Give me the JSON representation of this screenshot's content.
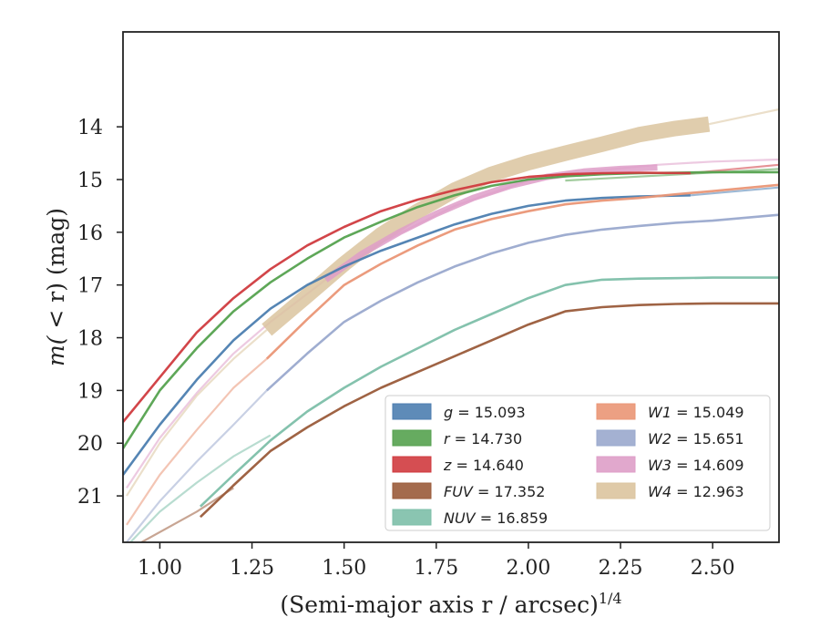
{
  "chart_data": {
    "type": "line",
    "xlabel": "(Semi-major axis r / arcsec)",
    "xlabel_sup": "1/4",
    "ylabel_pre": "m(",
    "ylabel_mid": " < r",
    "ylabel_post": ") (mag)",
    "xlim": [
      0.9,
      2.68
    ],
    "ylim": [
      21.88,
      12.2
    ],
    "y_inverted": true,
    "xticks": [
      1.0,
      1.25,
      1.5,
      1.75,
      2.0,
      2.25,
      2.5
    ],
    "xtick_labels": [
      "1.00",
      "1.25",
      "1.50",
      "1.75",
      "2.00",
      "2.25",
      "2.50"
    ],
    "yticks": [
      14,
      15,
      16,
      17,
      18,
      19,
      20,
      21
    ],
    "ytick_labels": [
      "14",
      "15",
      "16",
      "17",
      "18",
      "19",
      "20",
      "21"
    ],
    "grid": false,
    "legend": {
      "position": "lower-right",
      "columns": 2
    },
    "series": [
      {
        "name": "g",
        "value": "15.093",
        "color": "#4c7eb0",
        "x": [
          0.9,
          1.0,
          1.1,
          1.2,
          1.3,
          1.4,
          1.5,
          1.6,
          1.7,
          1.8,
          1.9,
          2.0,
          2.1,
          2.2,
          2.3,
          2.44
        ],
        "y": [
          20.6,
          19.65,
          18.8,
          18.05,
          17.45,
          17.0,
          16.65,
          16.35,
          16.1,
          15.85,
          15.65,
          15.5,
          15.4,
          15.35,
          15.32,
          15.3
        ],
        "faint_x": [
          2.44,
          2.68
        ],
        "faint_y": [
          15.3,
          15.15
        ]
      },
      {
        "name": "r",
        "value": "14.730",
        "color": "#55a24f",
        "x": [
          0.9,
          1.0,
          1.1,
          1.2,
          1.3,
          1.4,
          1.5,
          1.6,
          1.7,
          1.8,
          1.9,
          2.0,
          2.1,
          2.2,
          2.3,
          2.4,
          2.5,
          2.68
        ],
        "y": [
          20.1,
          19.0,
          18.2,
          17.5,
          16.95,
          16.5,
          16.1,
          15.8,
          15.52,
          15.3,
          15.12,
          15.0,
          14.94,
          14.9,
          14.88,
          14.87,
          14.86,
          14.86
        ],
        "faint_x": [
          2.1,
          2.68
        ],
        "faint_y": [
          15.02,
          14.8
        ]
      },
      {
        "name": "z",
        "value": "14.640",
        "color": "#d03b3f",
        "x": [
          0.9,
          1.0,
          1.1,
          1.2,
          1.3,
          1.4,
          1.5,
          1.6,
          1.7,
          1.8,
          1.9,
          2.0,
          2.1,
          2.2,
          2.3,
          2.44
        ],
        "y": [
          19.6,
          18.75,
          17.9,
          17.25,
          16.7,
          16.25,
          15.9,
          15.6,
          15.38,
          15.2,
          15.05,
          14.95,
          14.9,
          14.88,
          14.87,
          14.88
        ],
        "faint_x": [
          2.44,
          2.68
        ],
        "faint_y": [
          14.88,
          14.72
        ]
      },
      {
        "name": "FUV",
        "value": "17.352",
        "color": "#9a5b3a",
        "x": [
          1.11,
          1.2,
          1.3,
          1.4,
          1.5,
          1.6,
          1.7,
          1.8,
          1.9,
          2.0,
          2.1,
          2.2,
          2.3,
          2.4,
          2.5,
          2.68
        ],
        "y": [
          21.4,
          20.8,
          20.15,
          19.7,
          19.3,
          18.95,
          18.65,
          18.35,
          18.05,
          17.75,
          17.5,
          17.42,
          17.38,
          17.36,
          17.35,
          17.35
        ],
        "faint_x": [
          0.95,
          1.1,
          1.2
        ],
        "faint_y": [
          21.88,
          21.3,
          20.85
        ]
      },
      {
        "name": "NUV",
        "value": "16.859",
        "color": "#7dbfa9",
        "x": [
          1.11,
          1.2,
          1.3,
          1.4,
          1.5,
          1.6,
          1.7,
          1.8,
          1.9,
          2.0,
          2.1,
          2.2,
          2.3,
          2.4,
          2.5,
          2.68
        ],
        "y": [
          21.2,
          20.6,
          19.95,
          19.4,
          18.95,
          18.55,
          18.2,
          17.85,
          17.55,
          17.25,
          17.0,
          16.9,
          16.88,
          16.87,
          16.86,
          16.86
        ],
        "faint_x": [
          0.92,
          1.0,
          1.1,
          1.2,
          1.3
        ],
        "faint_y": [
          21.88,
          21.3,
          20.75,
          20.25,
          19.85
        ]
      },
      {
        "name": "W1",
        "value": "15.049",
        "color": "#ea9676",
        "x": [
          1.29,
          1.4,
          1.5,
          1.6,
          1.7,
          1.8,
          1.9,
          2.0,
          2.1,
          2.2,
          2.3,
          2.4,
          2.5,
          2.68
        ],
        "y": [
          18.4,
          17.65,
          17.0,
          16.6,
          16.25,
          15.95,
          15.75,
          15.6,
          15.47,
          15.4,
          15.35,
          15.28,
          15.22,
          15.1
        ],
        "faint_x": [
          0.91,
          1.0,
          1.1,
          1.2,
          1.29
        ],
        "faint_y": [
          21.55,
          20.6,
          19.75,
          18.95,
          18.4
        ]
      },
      {
        "name": "W2",
        "value": "15.651",
        "color": "#9aa9cd",
        "x": [
          1.29,
          1.4,
          1.5,
          1.6,
          1.7,
          1.8,
          1.9,
          2.0,
          2.1,
          2.2,
          2.3,
          2.4,
          2.5,
          2.68
        ],
        "y": [
          19.0,
          18.3,
          17.7,
          17.3,
          16.95,
          16.65,
          16.4,
          16.2,
          16.05,
          15.95,
          15.88,
          15.82,
          15.78,
          15.67
        ],
        "faint_x": [
          0.91,
          1.0,
          1.1,
          1.2,
          1.29
        ],
        "faint_y": [
          21.88,
          21.1,
          20.35,
          19.65,
          19.0
        ]
      },
      {
        "name": "W3",
        "value": "14.609",
        "color": "#de9ec8",
        "x": [
          1.45,
          1.55,
          1.65,
          1.75,
          1.85,
          1.95,
          2.05,
          2.15,
          2.25,
          2.35
        ],
        "y": [
          16.9,
          16.4,
          16.0,
          15.65,
          15.35,
          15.12,
          14.95,
          14.85,
          14.8,
          14.77
        ],
        "faint_x": [
          0.91,
          1.0,
          1.1,
          1.2,
          1.3,
          1.45,
          1.6,
          1.8,
          2.0,
          2.2,
          2.35,
          2.5,
          2.68
        ],
        "faint_y": [
          20.85,
          19.9,
          19.05,
          18.3,
          17.7,
          16.9,
          16.2,
          15.5,
          15.02,
          14.82,
          14.72,
          14.66,
          14.62
        ],
        "width": 7
      },
      {
        "name": "W4",
        "value": "12.963",
        "color": "#dbc49f",
        "x": [
          1.29,
          1.4,
          1.5,
          1.6,
          1.7,
          1.8,
          1.9,
          2.0,
          2.1,
          2.2,
          2.3,
          2.4,
          2.49
        ],
        "y": [
          17.85,
          17.2,
          16.6,
          16.05,
          15.6,
          15.2,
          14.9,
          14.68,
          14.5,
          14.33,
          14.15,
          14.03,
          13.95
        ],
        "faint_x": [
          0.91,
          1.0,
          1.1,
          1.2,
          1.29
        ],
        "faint_y": [
          21.0,
          20.0,
          19.1,
          18.4,
          17.85
        ],
        "faint_x2": [
          2.49,
          2.68
        ],
        "faint_y2": [
          13.95,
          13.67
        ],
        "width": 17
      }
    ]
  }
}
